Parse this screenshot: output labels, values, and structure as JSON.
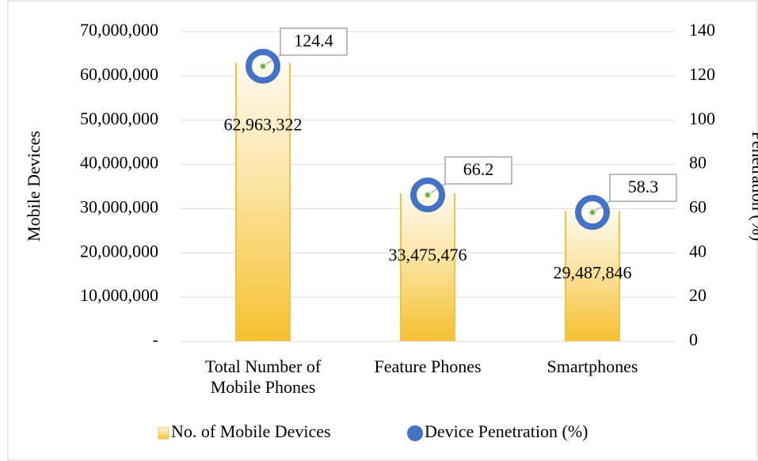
{
  "chart_data": {
    "type": "bar",
    "categories": [
      "Total Number of Mobile Phones",
      "Feature Phones",
      "Smartphones"
    ],
    "series": [
      {
        "name": "No. of Mobile Devices",
        "type": "bar",
        "color": "#f5c242",
        "values": [
          62963322,
          33475476,
          29487846
        ],
        "value_labels": [
          "62,963,322",
          "33,475,476",
          "29,487,846"
        ]
      },
      {
        "name": "Device Penetration (%)",
        "type": "scatter",
        "axis": "y2",
        "color": "#4472c4",
        "values": [
          124.4,
          66.2,
          58.3
        ]
      }
    ],
    "ylabel": "Mobile Devices",
    "y2label": "Penetration (%)",
    "ylim": [
      0,
      70000000
    ],
    "yticks": [
      {
        "value": 0,
        "label": "-"
      },
      {
        "value": 10000000,
        "label": "10,000,000"
      },
      {
        "value": 20000000,
        "label": "20,000,000"
      },
      {
        "value": 30000000,
        "label": "30,000,000"
      },
      {
        "value": 40000000,
        "label": "40,000,000"
      },
      {
        "value": 50000000,
        "label": "50,000,000"
      },
      {
        "value": 60000000,
        "label": "60,000,000"
      },
      {
        "value": 70000000,
        "label": "70,000,000"
      }
    ],
    "y2lim": [
      0,
      140
    ],
    "y2ticks": [
      0,
      20,
      40,
      60,
      80,
      100,
      120,
      140
    ],
    "grid": true,
    "legend": "bottom"
  }
}
